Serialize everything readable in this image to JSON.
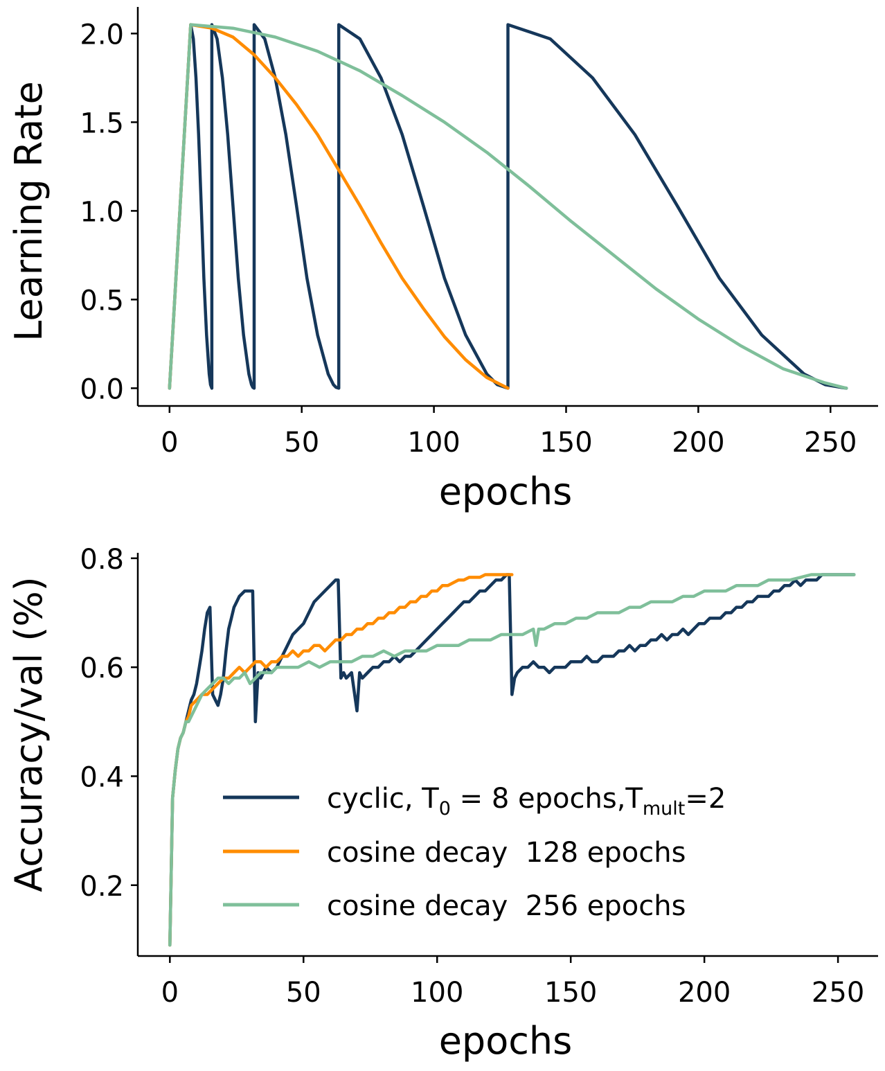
{
  "colors": {
    "cyclic": "#15375a",
    "cosine_128": "#ff8c00",
    "cosine_256": "#7fbf9a"
  },
  "legend": {
    "cyclic_prefix": "cyclic, T",
    "cyclic_sub0": "0",
    "cyclic_mid": " = 8 epochs,T",
    "cyclic_sub_mult": "mult",
    "cyclic_suffix": "=2",
    "cosine_128": "cosine decay  128 epochs",
    "cosine_256": "cosine decay  256 epochs"
  },
  "chart_data": [
    {
      "type": "line",
      "title": "",
      "xlabel": "epochs",
      "ylabel": "Learning Rate",
      "xlim": [
        -12,
        268
      ],
      "ylim": [
        -0.1,
        2.15
      ],
      "xticks": [
        0,
        50,
        100,
        150,
        200,
        250
      ],
      "xtick_labels": [
        "0",
        "50",
        "100",
        "150",
        "200",
        "250"
      ],
      "yticks": [
        0.0,
        0.5,
        1.0,
        1.5,
        2.0
      ],
      "ytick_labels": [
        "0.0",
        "0.5",
        "1.0",
        "1.5",
        "2.0"
      ],
      "grid": false,
      "series": [
        {
          "key": "cyclic",
          "x": [
            0,
            8,
            9,
            10,
            11,
            12,
            13,
            14,
            15,
            15.5,
            16,
            16,
            18,
            20,
            22,
            24,
            26,
            28,
            30,
            31,
            31.5,
            32,
            32,
            36,
            40,
            44,
            48,
            52,
            56,
            60,
            62,
            63,
            64,
            64,
            72,
            80,
            88,
            96,
            104,
            112,
            120,
            124,
            127,
            128,
            128,
            144,
            160,
            176,
            192,
            208,
            224,
            240,
            248,
            254,
            256
          ],
          "y": [
            0.0,
            2.05,
            1.97,
            1.75,
            1.43,
            1.03,
            0.62,
            0.3,
            0.08,
            0.02,
            0.0,
            2.05,
            1.97,
            1.75,
            1.43,
            1.03,
            0.62,
            0.3,
            0.08,
            0.02,
            0.005,
            0.0,
            2.05,
            1.97,
            1.75,
            1.43,
            1.03,
            0.62,
            0.3,
            0.08,
            0.02,
            0.005,
            0.0,
            2.05,
            1.97,
            1.75,
            1.43,
            1.03,
            0.62,
            0.3,
            0.08,
            0.02,
            0.005,
            0.0,
            2.05,
            1.97,
            1.75,
            1.43,
            1.03,
            0.62,
            0.3,
            0.08,
            0.02,
            0.005,
            0.0
          ]
        },
        {
          "key": "cosine_128",
          "x": [
            0,
            8,
            16,
            24,
            32,
            40,
            48,
            56,
            64,
            72,
            80,
            88,
            96,
            104,
            112,
            120,
            128
          ],
          "y": [
            0.0,
            2.05,
            2.03,
            1.98,
            1.88,
            1.75,
            1.6,
            1.43,
            1.23,
            1.03,
            0.82,
            0.62,
            0.45,
            0.29,
            0.16,
            0.06,
            0.0
          ]
        },
        {
          "key": "cosine_256",
          "x": [
            0,
            8,
            24,
            40,
            56,
            72,
            88,
            104,
            120,
            136,
            152,
            168,
            184,
            200,
            216,
            232,
            248,
            256
          ],
          "y": [
            0.0,
            2.05,
            2.03,
            1.98,
            1.9,
            1.79,
            1.65,
            1.5,
            1.33,
            1.14,
            0.94,
            0.75,
            0.56,
            0.39,
            0.24,
            0.11,
            0.03,
            0.0
          ]
        }
      ]
    },
    {
      "type": "line",
      "title": "",
      "xlabel": "epochs",
      "ylabel": "Accuracy/val (%)",
      "xlim": [
        -12,
        265
      ],
      "ylim": [
        0.07,
        0.81
      ],
      "xticks": [
        0,
        50,
        100,
        150,
        200,
        250
      ],
      "xtick_labels": [
        "0",
        "50",
        "100",
        "150",
        "200",
        "250"
      ],
      "yticks": [
        0.2,
        0.4,
        0.6,
        0.8
      ],
      "ytick_labels": [
        "0.2",
        "0.4",
        "0.6",
        "0.8"
      ],
      "grid": false,
      "legend_position": "center-right",
      "series": [
        {
          "key": "cyclic",
          "x": [
            0,
            1,
            2,
            3,
            4,
            5,
            6,
            7,
            8,
            9,
            10,
            11,
            12,
            13,
            14,
            15,
            16,
            17,
            18,
            19,
            20,
            21,
            22,
            23,
            24,
            25,
            26,
            27,
            28,
            29,
            30,
            31,
            32,
            33,
            34,
            36,
            38,
            40,
            42,
            44,
            46,
            48,
            50,
            52,
            54,
            56,
            58,
            60,
            62,
            63,
            64,
            65,
            66,
            68,
            70,
            71,
            72,
            74,
            76,
            78,
            80,
            82,
            84,
            86,
            88,
            90,
            92,
            94,
            96,
            98,
            100,
            102,
            104,
            106,
            108,
            110,
            112,
            114,
            116,
            118,
            120,
            122,
            124,
            126,
            127,
            128,
            129,
            130,
            132,
            134,
            136,
            138,
            140,
            142,
            144,
            146,
            148,
            150,
            152,
            154,
            156,
            158,
            160,
            162,
            164,
            166,
            168,
            170,
            172,
            174,
            176,
            178,
            180,
            182,
            184,
            186,
            188,
            190,
            192,
            194,
            196,
            198,
            200,
            202,
            204,
            206,
            208,
            210,
            212,
            214,
            216,
            218,
            220,
            222,
            224,
            226,
            228,
            230,
            232,
            234,
            236,
            238,
            240,
            242,
            244,
            246,
            248,
            250,
            252,
            254,
            256
          ],
          "y": [
            0.09,
            0.36,
            0.41,
            0.45,
            0.47,
            0.48,
            0.5,
            0.52,
            0.54,
            0.55,
            0.57,
            0.6,
            0.63,
            0.67,
            0.7,
            0.71,
            0.55,
            0.54,
            0.53,
            0.55,
            0.58,
            0.63,
            0.67,
            0.69,
            0.71,
            0.72,
            0.73,
            0.735,
            0.74,
            0.74,
            0.74,
            0.74,
            0.5,
            0.59,
            0.58,
            0.6,
            0.59,
            0.6,
            0.62,
            0.64,
            0.66,
            0.67,
            0.68,
            0.7,
            0.72,
            0.73,
            0.74,
            0.75,
            0.76,
            0.76,
            0.58,
            0.59,
            0.58,
            0.59,
            0.52,
            0.59,
            0.58,
            0.59,
            0.6,
            0.6,
            0.61,
            0.61,
            0.62,
            0.61,
            0.62,
            0.62,
            0.63,
            0.64,
            0.65,
            0.66,
            0.67,
            0.68,
            0.69,
            0.7,
            0.71,
            0.72,
            0.72,
            0.73,
            0.74,
            0.74,
            0.75,
            0.76,
            0.76,
            0.77,
            0.77,
            0.55,
            0.58,
            0.59,
            0.6,
            0.6,
            0.61,
            0.6,
            0.6,
            0.59,
            0.6,
            0.6,
            0.6,
            0.61,
            0.61,
            0.61,
            0.62,
            0.61,
            0.61,
            0.62,
            0.62,
            0.62,
            0.63,
            0.63,
            0.64,
            0.63,
            0.64,
            0.64,
            0.65,
            0.65,
            0.66,
            0.65,
            0.66,
            0.66,
            0.67,
            0.66,
            0.67,
            0.68,
            0.68,
            0.69,
            0.69,
            0.69,
            0.7,
            0.7,
            0.71,
            0.71,
            0.72,
            0.72,
            0.73,
            0.73,
            0.73,
            0.74,
            0.74,
            0.75,
            0.75,
            0.76,
            0.75,
            0.76,
            0.76,
            0.76,
            0.77,
            0.77,
            0.77,
            0.77,
            0.77,
            0.77,
            0.77
          ]
        },
        {
          "key": "cosine_128",
          "x": [
            0,
            1,
            2,
            3,
            4,
            5,
            6,
            7,
            8,
            10,
            12,
            14,
            16,
            18,
            20,
            22,
            24,
            26,
            28,
            30,
            32,
            34,
            36,
            38,
            40,
            42,
            44,
            46,
            48,
            50,
            52,
            54,
            56,
            58,
            60,
            62,
            64,
            66,
            68,
            70,
            72,
            74,
            76,
            78,
            80,
            82,
            84,
            86,
            88,
            90,
            92,
            94,
            96,
            98,
            100,
            102,
            104,
            106,
            108,
            110,
            112,
            114,
            116,
            118,
            120,
            122,
            124,
            126,
            128
          ],
          "y": [
            0.09,
            0.36,
            0.41,
            0.45,
            0.47,
            0.48,
            0.5,
            0.51,
            0.53,
            0.54,
            0.55,
            0.55,
            0.56,
            0.57,
            0.58,
            0.58,
            0.59,
            0.6,
            0.59,
            0.6,
            0.61,
            0.61,
            0.6,
            0.61,
            0.61,
            0.62,
            0.62,
            0.63,
            0.62,
            0.63,
            0.63,
            0.64,
            0.64,
            0.63,
            0.64,
            0.65,
            0.65,
            0.66,
            0.66,
            0.67,
            0.67,
            0.68,
            0.68,
            0.69,
            0.69,
            0.7,
            0.7,
            0.71,
            0.71,
            0.72,
            0.72,
            0.73,
            0.73,
            0.74,
            0.74,
            0.75,
            0.75,
            0.755,
            0.76,
            0.76,
            0.765,
            0.765,
            0.765,
            0.77,
            0.77,
            0.77,
            0.77,
            0.77,
            0.77
          ]
        },
        {
          "key": "cosine_256",
          "x": [
            0,
            1,
            2,
            3,
            4,
            5,
            6,
            7,
            8,
            10,
            12,
            14,
            16,
            18,
            20,
            22,
            24,
            26,
            28,
            30,
            32,
            34,
            36,
            38,
            40,
            44,
            48,
            52,
            56,
            60,
            64,
            68,
            72,
            76,
            80,
            84,
            88,
            92,
            96,
            100,
            104,
            108,
            112,
            116,
            120,
            124,
            128,
            132,
            136,
            137,
            138,
            140,
            144,
            148,
            152,
            156,
            160,
            164,
            168,
            172,
            176,
            180,
            184,
            188,
            192,
            196,
            200,
            204,
            208,
            212,
            216,
            220,
            224,
            228,
            232,
            236,
            240,
            244,
            248,
            252,
            256
          ],
          "y": [
            0.09,
            0.36,
            0.41,
            0.45,
            0.47,
            0.48,
            0.5,
            0.5,
            0.51,
            0.53,
            0.55,
            0.56,
            0.57,
            0.58,
            0.58,
            0.57,
            0.58,
            0.58,
            0.59,
            0.57,
            0.58,
            0.59,
            0.59,
            0.59,
            0.6,
            0.6,
            0.6,
            0.61,
            0.6,
            0.61,
            0.61,
            0.61,
            0.62,
            0.62,
            0.63,
            0.62,
            0.63,
            0.63,
            0.63,
            0.64,
            0.64,
            0.64,
            0.65,
            0.65,
            0.65,
            0.66,
            0.66,
            0.66,
            0.67,
            0.64,
            0.67,
            0.67,
            0.68,
            0.68,
            0.69,
            0.69,
            0.7,
            0.7,
            0.7,
            0.71,
            0.71,
            0.72,
            0.72,
            0.72,
            0.73,
            0.73,
            0.74,
            0.74,
            0.74,
            0.75,
            0.75,
            0.75,
            0.76,
            0.76,
            0.76,
            0.765,
            0.77,
            0.77,
            0.77,
            0.77,
            0.77
          ]
        }
      ]
    }
  ]
}
